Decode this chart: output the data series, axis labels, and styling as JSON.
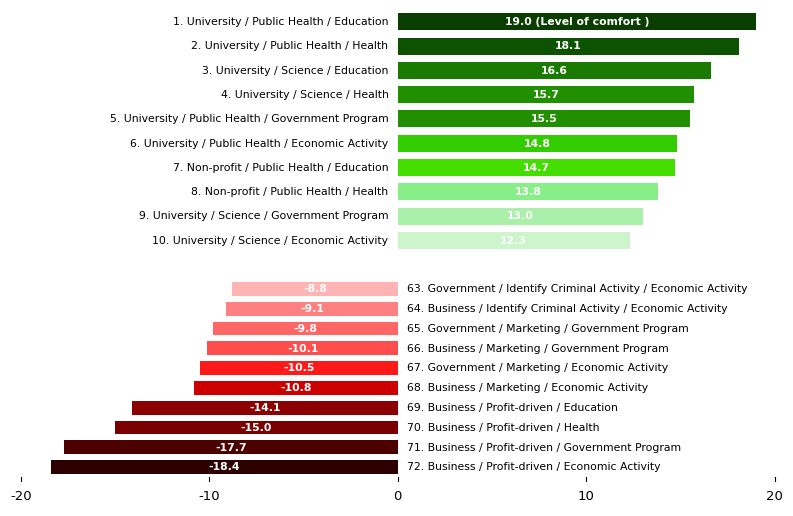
{
  "top_labels": [
    "1. University / Public Health / Education",
    "2. University / Public Health / Health",
    "3. University / Science / Education",
    "4. University / Science / Health",
    "5. University / Public Health / Government Program",
    "6. University / Public Health / Economic Activity",
    "7. Non-profit / Public Health / Education",
    "8. Non-profit / Public Health / Health",
    "9. University / Science / Government Program",
    "10. University / Science / Economic Activity"
  ],
  "top_values": [
    19.0,
    18.1,
    16.6,
    15.7,
    15.5,
    14.8,
    14.7,
    13.8,
    13.0,
    12.3
  ],
  "top_colors": [
    "#0a3d00",
    "#0d5200",
    "#1a7a00",
    "#228f00",
    "#228f00",
    "#33cc00",
    "#44dd00",
    "#88ee88",
    "#aaf0aa",
    "#ccf5cc"
  ],
  "top_label_annotation": "19.0 (Level of comfort )",
  "bottom_labels": [
    "63. Government / Identify Criminal Activity / Economic Activity",
    "64. Business / Identify Criminal Activity / Economic Activity",
    "65. Government / Marketing / Government Program",
    "66. Business / Marketing / Government Program",
    "67. Government / Marketing / Economic Activity",
    "68. Business / Marketing / Economic Activity",
    "69. Business / Profit-driven / Education",
    "70. Business / Profit-driven / Health",
    "71. Business / Profit-driven / Government Program",
    "72. Business / Profit-driven / Economic Activity"
  ],
  "bottom_values": [
    -8.8,
    -9.1,
    -9.8,
    -10.1,
    -10.5,
    -10.8,
    -14.1,
    -15.0,
    -17.7,
    -18.4
  ],
  "bottom_colors": [
    "#ffb3b3",
    "#ff8080",
    "#ff6666",
    "#ff4d4d",
    "#ff1a1a",
    "#cc0000",
    "#8b0000",
    "#7a0000",
    "#4d0000",
    "#2d0000"
  ],
  "xlim": [
    -20,
    20
  ],
  "xticks": [
    -20,
    -10,
    0,
    10,
    20
  ]
}
